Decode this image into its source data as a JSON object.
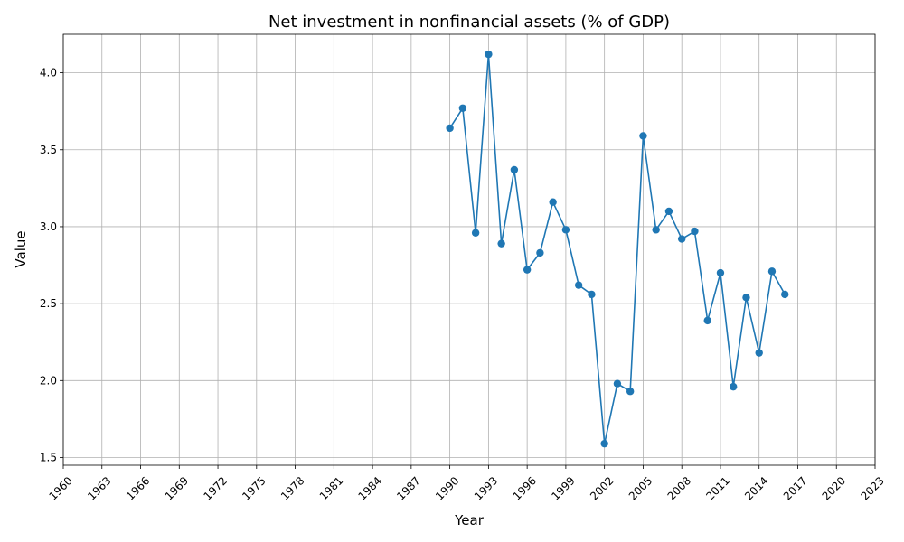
{
  "chart_data": {
    "type": "line",
    "title": "Net investment in nonfinancial assets (% of GDP)",
    "xlabel": "Year",
    "ylabel": "Value",
    "xlim": [
      1960,
      2023
    ],
    "ylim": [
      1.45,
      4.25
    ],
    "x_ticks": [
      1960,
      1963,
      1966,
      1969,
      1972,
      1975,
      1978,
      1981,
      1984,
      1987,
      1990,
      1993,
      1996,
      1999,
      2002,
      2005,
      2008,
      2011,
      2014,
      2017,
      2020,
      2023
    ],
    "y_ticks": [
      1.5,
      2.0,
      2.5,
      3.0,
      3.5,
      4.0
    ],
    "y_tick_labels": [
      "1.5",
      "2.0",
      "2.5",
      "3.0",
      "3.5",
      "4.0"
    ],
    "grid": true,
    "series": [
      {
        "color": "#1f77b4",
        "marker": "circle",
        "x": [
          1990,
          1991,
          1992,
          1993,
          1994,
          1995,
          1996,
          1997,
          1998,
          1999,
          2000,
          2001,
          2002,
          2003,
          2004,
          2005,
          2006,
          2007,
          2008,
          2009,
          2010,
          2011,
          2012,
          2013,
          2014,
          2015,
          2016
        ],
        "y": [
          3.64,
          3.77,
          2.96,
          4.12,
          2.89,
          3.37,
          2.72,
          2.83,
          3.16,
          2.98,
          2.62,
          2.56,
          1.59,
          1.98,
          1.93,
          3.59,
          2.98,
          3.1,
          2.92,
          2.97,
          2.39,
          2.7,
          1.96,
          2.54,
          2.18,
          2.71,
          2.56
        ]
      }
    ]
  }
}
